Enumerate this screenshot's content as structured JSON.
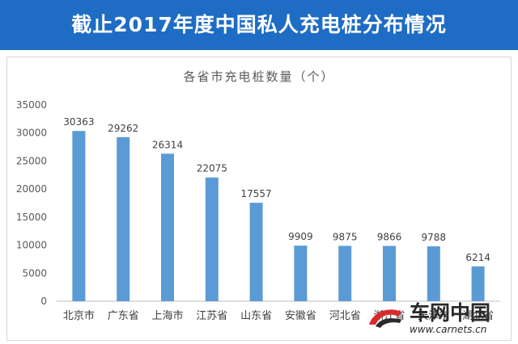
{
  "banner": {
    "title": "截止2017年度中国私人充电桩分布情况"
  },
  "watermark": {
    "name": "车网中国",
    "url": "www.carnets.cn"
  },
  "colors": {
    "banner": "#1e6cc4",
    "bar": "#5b9bd5"
  },
  "chart_data": {
    "type": "bar",
    "title": "各省市充电桩数量（个）",
    "xlabel": "",
    "ylabel": "",
    "categories": [
      "北京市",
      "广东省",
      "上海市",
      "江苏省",
      "山东省",
      "安徽省",
      "河北省",
      "浙江省",
      "天津市",
      "湖北省"
    ],
    "values": [
      30363,
      29262,
      26314,
      22075,
      17557,
      9909,
      9875,
      9866,
      9788,
      6214
    ],
    "ylim": [
      0,
      35000
    ],
    "yticks": [
      0,
      5000,
      10000,
      15000,
      20000,
      25000,
      30000,
      35000
    ],
    "grid": false,
    "legend": "none"
  }
}
